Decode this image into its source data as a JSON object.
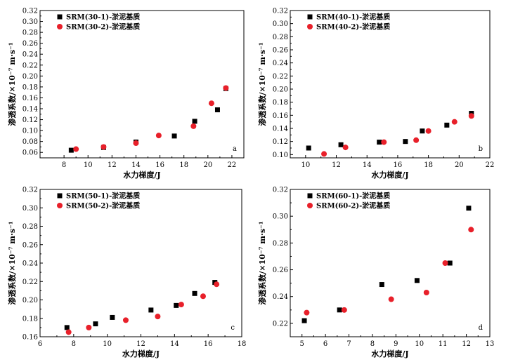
{
  "chart_data": [
    {
      "id": "a",
      "type": "scatter",
      "panel_letter": "a",
      "xlabel": "水力梯度/J",
      "ylabel": "渗透系数/×10⁻⁷ m·s⁻¹",
      "xlim": [
        6,
        23
      ],
      "ylim": [
        0.05,
        0.32
      ],
      "xticks": [
        8,
        10,
        12,
        14,
        16,
        18,
        20,
        22
      ],
      "yticks": [
        0.06,
        0.08,
        0.1,
        0.12,
        0.14,
        0.16,
        0.18,
        0.2,
        0.22,
        0.24,
        0.26,
        0.28,
        0.3,
        0.32
      ],
      "xtick_labels": [
        "8",
        "10",
        "12",
        "14",
        "16",
        "18",
        "20",
        "22"
      ],
      "ytick_labels": [
        "0.06",
        "0.08",
        "0.10",
        "0.12",
        "0.14",
        "0.16",
        "0.18",
        "0.20",
        "0.22",
        "0.24",
        "0.26",
        "0.28",
        "0.30",
        "0.32"
      ],
      "legend_position": "top-left",
      "series": [
        {
          "name": "SRM(30-1)-淤泥基质",
          "marker": "square",
          "color": "#000000",
          "x": [
            8.6,
            11.3,
            14.0,
            17.2,
            18.9,
            20.8,
            21.5
          ],
          "y": [
            0.064,
            0.069,
            0.079,
            0.09,
            0.117,
            0.138,
            0.177
          ]
        },
        {
          "name": "SRM(30-2)-淤泥基质",
          "marker": "circle",
          "color": "#e8202a",
          "x": [
            9.0,
            11.3,
            14.0,
            15.9,
            18.8,
            20.3,
            21.5
          ],
          "y": [
            0.066,
            0.07,
            0.077,
            0.091,
            0.108,
            0.15,
            0.178
          ]
        }
      ]
    },
    {
      "id": "b",
      "type": "scatter",
      "panel_letter": "b",
      "xlabel": "水力梯度/J",
      "ylabel": "渗透系数/×10⁻⁷ m·s⁻¹",
      "xlim": [
        9,
        22
      ],
      "ylim": [
        0.095,
        0.32
      ],
      "xticks": [
        10,
        12,
        14,
        16,
        18,
        20,
        22
      ],
      "yticks": [
        0.1,
        0.12,
        0.14,
        0.16,
        0.18,
        0.2,
        0.22,
        0.24,
        0.26,
        0.28,
        0.3,
        0.32
      ],
      "xtick_labels": [
        "10",
        "12",
        "14",
        "16",
        "18",
        "20",
        "22"
      ],
      "ytick_labels": [
        "0.10",
        "0.12",
        "0.14",
        "0.16",
        "0.18",
        "0.20",
        "0.22",
        "0.24",
        "0.26",
        "0.28",
        "0.30",
        "0.32"
      ],
      "legend_position": "top-left",
      "series": [
        {
          "name": "SRM(40-1)-淤泥基质",
          "marker": "square",
          "color": "#000000",
          "x": [
            10.2,
            12.3,
            14.8,
            16.5,
            17.6,
            19.2,
            20.8
          ],
          "y": [
            0.11,
            0.115,
            0.119,
            0.12,
            0.136,
            0.145,
            0.163
          ]
        },
        {
          "name": "SRM(40-2)-淤泥基质",
          "marker": "circle",
          "color": "#e8202a",
          "x": [
            11.2,
            12.6,
            15.1,
            17.2,
            18.0,
            19.7,
            20.8
          ],
          "y": [
            0.101,
            0.111,
            0.119,
            0.122,
            0.136,
            0.15,
            0.159
          ]
        }
      ]
    },
    {
      "id": "c",
      "type": "scatter",
      "panel_letter": "c",
      "xlabel": "水力梯度/J",
      "ylabel": "渗透系数/×10⁻⁷ m·s⁻¹",
      "xlim": [
        6,
        18
      ],
      "ylim": [
        0.16,
        0.32
      ],
      "xticks": [
        6,
        8,
        10,
        12,
        14,
        16,
        18
      ],
      "yticks": [
        0.16,
        0.18,
        0.2,
        0.22,
        0.24,
        0.26,
        0.28,
        0.3,
        0.32
      ],
      "xtick_labels": [
        "6",
        "8",
        "10",
        "12",
        "14",
        "16",
        "18"
      ],
      "ytick_labels": [
        "0.16",
        "0.18",
        "0.20",
        "0.22",
        "0.24",
        "0.26",
        "0.28",
        "0.30",
        "0.32"
      ],
      "legend_position": "top-left",
      "series": [
        {
          "name": "SRM(50-1)-淤泥基质",
          "marker": "square",
          "color": "#000000",
          "x": [
            7.6,
            9.3,
            10.3,
            12.6,
            14.1,
            15.2,
            16.4
          ],
          "y": [
            0.17,
            0.174,
            0.181,
            0.189,
            0.194,
            0.207,
            0.219
          ]
        },
        {
          "name": "SRM(50-2)-淤泥基质",
          "marker": "circle",
          "color": "#e8202a",
          "x": [
            7.7,
            8.9,
            11.1,
            13.0,
            14.4,
            15.7,
            16.5
          ],
          "y": [
            0.165,
            0.17,
            0.178,
            0.182,
            0.195,
            0.204,
            0.217
          ]
        }
      ]
    },
    {
      "id": "d",
      "type": "scatter",
      "panel_letter": "d",
      "xlabel": "水力梯度/J",
      "ylabel": "渗透系数/×10⁻⁷ m·s⁻¹",
      "xlim": [
        4.5,
        13
      ],
      "ylim": [
        0.21,
        0.32
      ],
      "xticks": [
        5,
        6,
        7,
        8,
        9,
        10,
        11,
        12,
        13
      ],
      "yticks": [
        0.22,
        0.24,
        0.26,
        0.28,
        0.3,
        0.32
      ],
      "xtick_labels": [
        "5",
        "6",
        "7",
        "8",
        "9",
        "10",
        "11",
        "12",
        "13"
      ],
      "ytick_labels": [
        "0.22",
        "0.24",
        "0.26",
        "0.28",
        "0.30",
        "0.32"
      ],
      "legend_position": "top-left",
      "series": [
        {
          "name": "SRM(60-1)-淤泥基质",
          "marker": "square",
          "color": "#000000",
          "x": [
            5.1,
            6.6,
            8.4,
            9.9,
            11.3,
            12.1
          ],
          "y": [
            0.222,
            0.23,
            0.249,
            0.252,
            0.265,
            0.306
          ]
        },
        {
          "name": "SRM(60-2)-淤泥基质",
          "marker": "circle",
          "color": "#e8202a",
          "x": [
            5.2,
            6.8,
            8.8,
            10.3,
            11.1,
            12.2
          ],
          "y": [
            0.228,
            0.23,
            0.238,
            0.243,
            0.265,
            0.29
          ]
        }
      ]
    }
  ]
}
